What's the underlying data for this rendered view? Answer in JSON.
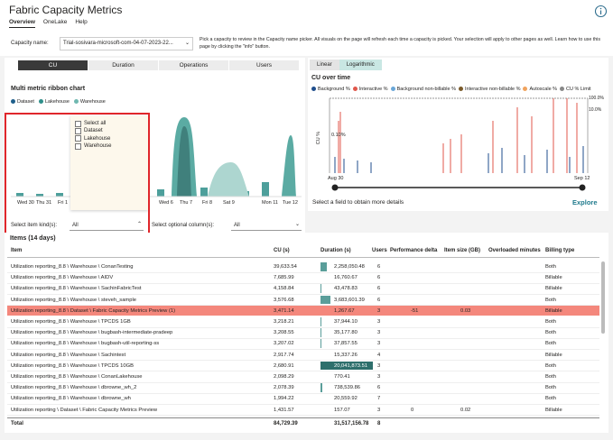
{
  "header": {
    "title": "Fabric Capacity Metrics",
    "tabs": [
      "Overview",
      "OneLake",
      "Help"
    ]
  },
  "capacity": {
    "label": "Capacity name:",
    "value": "Trial-sosivara-microsoft-com-04-07-2023-22...",
    "help": "Pick a capacity to review in the Capacity name picker. All visuals on the page will refresh each time a capacity is picked. Your selection will apply to other pages as well. Learn how to use this page by clicking the \"info\" button."
  },
  "left": {
    "buttons": [
      "CU",
      "Duration",
      "Operations",
      "Users"
    ],
    "chart_title": "Multi metric ribbon chart",
    "legend": [
      {
        "name": "Dataset",
        "color": "#1f5f8b"
      },
      {
        "name": "Lakehouse",
        "color": "#2f8f8a"
      },
      {
        "name": "Warehouse",
        "color": "#6fb8b0"
      }
    ],
    "x_labels": [
      "Wed 30",
      "Thu 31",
      "Fri 1",
      "Wed 6",
      "Thu 7",
      "Fri 8",
      "Sat 9",
      "Mon 11",
      "Tue 12"
    ],
    "popup": [
      "Select all",
      "Dataset",
      "Lakehouse",
      "Warehouse"
    ],
    "item_kind_label": "Select item kind(s):",
    "item_kind_value": "All",
    "optional_label": "Select optional column(s):",
    "optional_value": "All"
  },
  "right": {
    "tabs": [
      "Linear",
      "Logarithmic"
    ],
    "title": "CU over time",
    "legend": [
      {
        "name": "Background %",
        "color": "#1f4e8c"
      },
      {
        "name": "Interactive %",
        "color": "#e0574b"
      },
      {
        "name": "Background non-billable %",
        "color": "#6aa7d8"
      },
      {
        "name": "Interactive non-billable %",
        "color": "#7a5a2a"
      },
      {
        "name": "Autoscale %",
        "color": "#f0a35e"
      },
      {
        "name": "CU % Limit",
        "color": "#888888"
      }
    ],
    "y_label": "CU %",
    "left_tick": "0.10%",
    "right_ticks": [
      "100.0%",
      "10.0%"
    ],
    "range": [
      "Aug 30",
      "Sep 12"
    ],
    "hint": "Select a field to obtain more details",
    "explore": "Explore"
  },
  "table": {
    "title": "Items (14 days)",
    "columns": [
      "Item",
      "CU (s)",
      "Duration (s)",
      "Users",
      "Performance delta",
      "Item size (GB)",
      "Overloaded minutes",
      "Billing type"
    ],
    "rows": [
      [
        "Utilization reporting_8.8 \\ Warehouse \\ ConanTesting",
        "39,633.54",
        "2,258,050.48",
        "6",
        null,
        null,
        null,
        "Both"
      ],
      [
        "Utilization reporting_8.8 \\ Warehouse \\ AIDV",
        "7,685.99",
        "16,760.67",
        "6",
        null,
        null,
        null,
        "Billable"
      ],
      [
        "Utilization reporting_8.8 \\ Warehouse \\ SachinFabricTest",
        "4,158.84",
        "43,478.83",
        "6",
        null,
        null,
        null,
        "Billable"
      ],
      [
        "Utilization reporting_8.8 \\ Warehouse \\ steveh_sample",
        "3,576.68",
        "3,683,601.39",
        "6",
        null,
        null,
        null,
        "Both"
      ],
      [
        "Utilization reporting_8.8 \\ Dataset \\ Fabric Capacity Metrics Preview (1)",
        "3,471.14",
        "1,267.67",
        "3",
        "-51",
        "0.03",
        null,
        "Billable"
      ],
      [
        "Utilization reporting_8.8 \\ Warehouse \\ TPCDS 1GB",
        "3,218.21",
        "37,944.10",
        "3",
        null,
        null,
        null,
        "Both"
      ],
      [
        "Utilization reporting_8.8 \\ Warehouse \\ bugbash-intermediate-pradeep",
        "3,208.55",
        "35,177.80",
        "3",
        null,
        null,
        null,
        "Both"
      ],
      [
        "Utilization reporting_8.8 \\ Warehouse \\ bugbash-util-reporting-ss",
        "3,207.02",
        "37,857.55",
        "3",
        null,
        null,
        null,
        "Both"
      ],
      [
        "Utilization reporting_8.8 \\ Warehouse \\ Sachintest",
        "2,917.74",
        "15,337.26",
        "4",
        null,
        null,
        null,
        "Billable"
      ],
      [
        "Utilization reporting_8.8 \\ Warehouse \\ TPCDS 10GB",
        "2,680.91",
        "20,041,873.51",
        "3",
        null,
        null,
        null,
        "Both"
      ],
      [
        "Utilization reporting_8.8 \\ Warehouse \\ ConanLakehouse",
        "2,098.29",
        "770.41",
        "3",
        null,
        null,
        null,
        "Both"
      ],
      [
        "Utilization reporting_8.8 \\ Warehouse \\ dbrowne_wh_2",
        "2,078.39",
        "738,539.86",
        "6",
        null,
        null,
        null,
        "Both"
      ],
      [
        "Utilization reporting_8.8 \\ Warehouse \\ dbrowne_wh",
        "1,994.22",
        "20,559.92",
        "7",
        null,
        null,
        null,
        "Both"
      ],
      [
        "Utilization reporting \\ Dataset \\ Fabric Capacity Metrics Preview",
        "1,431.57",
        "157.07",
        "3",
        "0",
        "0.02",
        null,
        "Billable"
      ]
    ],
    "total": [
      "Total",
      "84,729.39",
      "31,517,156.78",
      "8",
      null,
      null,
      null,
      null
    ]
  }
}
